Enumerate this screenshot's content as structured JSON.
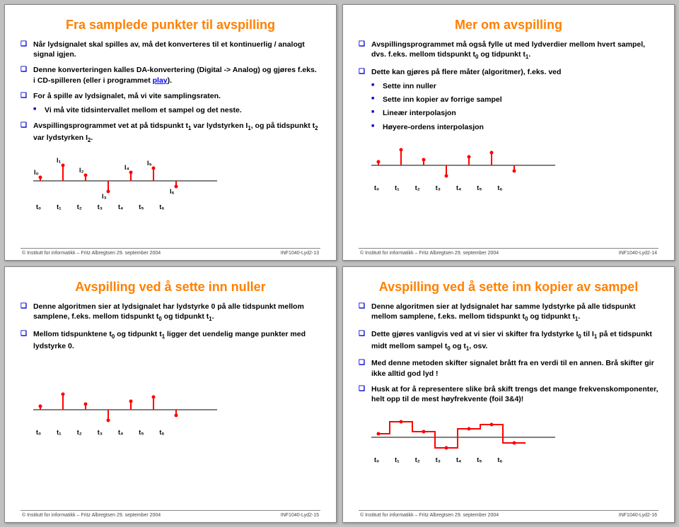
{
  "colors": {
    "title": "#ff8000",
    "bullet": "#0000cc",
    "text": "#000000",
    "axis": "#000000",
    "stem": "#ff0000",
    "link": "#0000ee"
  },
  "ticks": [
    "t₀",
    "t₁",
    "t₂",
    "t₃",
    "t₄",
    "t₅",
    "t₆"
  ],
  "stems": {
    "values": [
      5,
      22,
      8,
      -15,
      12,
      18,
      -8
    ],
    "labels": [
      "I₀",
      "I₁",
      "I₂",
      "I₃",
      "I₄",
      "I₅",
      "I₆"
    ]
  },
  "slides": [
    {
      "title": "Fra samplede punkter til avspilling",
      "bullets": [
        {
          "text": "Når lydsignalet skal spilles av, må det konverteres til et kontinuerlig / analogt signal igjen."
        },
        {
          "html": "Denne konverteringen kalles DA-konvertering (Digital -> Analog) og gjøres f.eks. i CD-spilleren (eller i programmet <span class='play-link'>play</span>)."
        },
        {
          "text": "For å spille av lydsignalet, må vi vite samplingsraten.",
          "sub": [
            "Vi må vite tidsintervallet mellom et sampel og det neste."
          ]
        },
        {
          "html": "Avspillingsprogrammet vet at på tidspunkt t<sub>1</sub> var lydstyrken I<sub>1</sub>, og på tidspunkt t<sub>2</sub> var lydstyrken I<sub>2</sub>."
        }
      ],
      "footer_left": "© Institutt for informatikk – Fritz Albregtsen 29. september 2004",
      "footer_right": "INF1040-Lyd2-13",
      "chart": "stems_labeled"
    },
    {
      "title": "Mer om avspilling",
      "bullets": [
        {
          "html": "Avspillingsprogrammet må også fylle ut med lydverdier mellom hvert sampel, dvs. f.eks. mellom tidspunkt t<sub>0</sub> og tidpunkt t<sub>1</sub>."
        },
        {
          "text": "Dette kan gjøres på flere måter (algoritmer), f.eks. ved",
          "sub": [
            "Sette inn nuller",
            "Sette inn kopier av forrige sampel",
            "Lineær interpolasjon",
            "Høyere-ordens interpolasjon"
          ]
        }
      ],
      "footer_left": "© Institutt for informatikk – Fritz Albregtsen 29. september 2004",
      "footer_right": "INF1040-Lyd2-14",
      "chart": "stems"
    },
    {
      "title": "Avspilling ved å sette inn nuller",
      "bullets": [
        {
          "html": "Denne algoritmen sier at lydsignalet har lydstyrke 0 på alle tidspunkt mellom samplene, f.eks. mellom tidspunkt t<sub>0</sub> og tidpunkt t<sub>1</sub>."
        },
        {
          "html": "Mellom tidspunktene t<sub>0</sub> og tidpunkt t<sub>1</sub> ligger det uendelig mange punkter med lydstyrke 0."
        }
      ],
      "footer_left": "© Institutt for informatikk – Fritz Albregtsen 29. september 2004",
      "footer_right": "INF1040-Lyd2-15",
      "chart": "stems"
    },
    {
      "title": "Avspilling ved å sette inn kopier av sampel",
      "bullets": [
        {
          "html": "Denne algoritmen sier at lydsignalet har samme lydstyrke på alle tidspunkt mellom samplene, f.eks. mellom tidspunkt t<sub>0</sub> og tidpunkt t<sub>1</sub>."
        },
        {
          "html": "Dette gjøres vanligvis ved at vi sier vi skifter fra lydstyrke I<sub>0</sub> til I<sub>1</sub> på et tidspunkt midt mellom sampel t<sub>0</sub> og t<sub>1</sub>, osv."
        },
        {
          "text": "Med denne metoden skifter signalet brått fra en verdi til en annen. Brå skifter gir ikke alltid god lyd !"
        },
        {
          "text": "Husk at for å representere slike brå skift trengs det mange frekvenskomponenter, helt opp til de mest høyfrekvente (foil 3&4)!"
        }
      ],
      "footer_left": "© Institutt for informatikk – Fritz Albregtsen 29. september 2004",
      "footer_right": "INF1040-Lyd2-16",
      "chart": "step"
    }
  ]
}
